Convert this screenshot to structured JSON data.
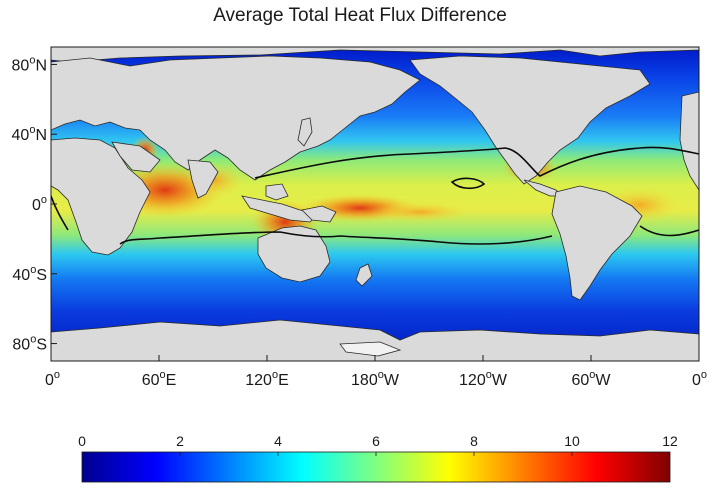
{
  "title": "Average Total Heat Flux Difference",
  "map": {
    "projection": "equirectangular",
    "lon_range": [
      0,
      360
    ],
    "lat_range": [
      -90,
      90
    ],
    "lat_ticks": [
      {
        "value": 80,
        "label": "80",
        "hemi": "N"
      },
      {
        "value": 40,
        "label": "40",
        "hemi": "N"
      },
      {
        "value": 0,
        "label": "0",
        "hemi": ""
      },
      {
        "value": -40,
        "label": "40",
        "hemi": "S"
      },
      {
        "value": -80,
        "label": "80",
        "hemi": "S"
      }
    ],
    "lon_ticks": [
      {
        "value": 0,
        "label": "0",
        "hemi": ""
      },
      {
        "value": 60,
        "label": "60",
        "hemi": "E"
      },
      {
        "value": 120,
        "label": "120",
        "hemi": "E"
      },
      {
        "value": 180,
        "label": "180",
        "hemi": "W"
      },
      {
        "value": 240,
        "label": "120",
        "hemi": "W"
      },
      {
        "value": 300,
        "label": "60",
        "hemi": "W"
      },
      {
        "value": 360,
        "label": "0",
        "hemi": ""
      }
    ],
    "degree_symbol": "o",
    "land_color": "#dadada"
  },
  "colorbar": {
    "colormap": "jet",
    "min": 0,
    "max": 12,
    "ticks": [
      "0",
      "2",
      "4",
      "6",
      "8",
      "10",
      "12"
    ]
  }
}
